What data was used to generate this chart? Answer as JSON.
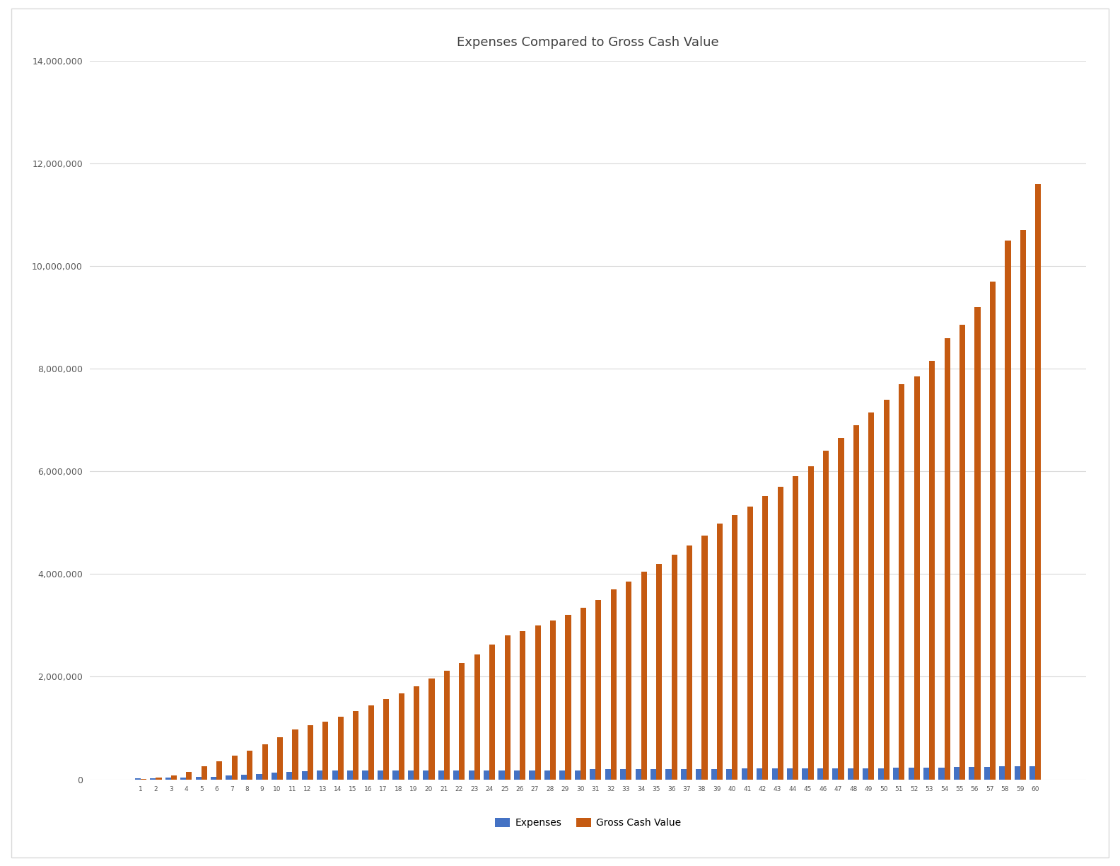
{
  "title": "Expenses Compared to Gross Cash Value",
  "years": [
    1,
    2,
    3,
    4,
    5,
    6,
    7,
    8,
    9,
    10,
    11,
    12,
    13,
    14,
    15,
    16,
    17,
    18,
    19,
    20,
    21,
    22,
    23,
    24,
    25,
    26,
    27,
    28,
    29,
    30,
    31,
    32,
    33,
    34,
    35,
    36,
    37,
    38,
    39,
    40,
    41,
    42,
    43,
    44,
    45,
    46,
    47,
    48,
    49,
    50,
    51,
    52,
    53,
    54,
    55,
    56,
    57,
    58,
    59,
    60
  ],
  "expenses": [
    18000,
    18000,
    36000,
    36000,
    54000,
    54000,
    72000,
    90000,
    108000,
    126000,
    144000,
    162000,
    180000,
    180000,
    180000,
    180000,
    180000,
    180000,
    180000,
    180000,
    180000,
    180000,
    180000,
    180000,
    180000,
    180000,
    180000,
    180000,
    180000,
    180000,
    200000,
    200000,
    200000,
    200000,
    200000,
    200000,
    200000,
    200000,
    200000,
    200000,
    210000,
    210000,
    210000,
    210000,
    210000,
    220000,
    220000,
    220000,
    220000,
    220000,
    230000,
    230000,
    230000,
    230000,
    240000,
    240000,
    240000,
    250000,
    250000,
    260000
  ],
  "gross_cash_value": [
    8000,
    30000,
    80000,
    150000,
    250000,
    350000,
    460000,
    560000,
    680000,
    820000,
    970000,
    1050000,
    1130000,
    1220000,
    1330000,
    1440000,
    1560000,
    1680000,
    1810000,
    1970000,
    2120000,
    2270000,
    2440000,
    2620000,
    2800000,
    2890000,
    3000000,
    3100000,
    3200000,
    3350000,
    3500000,
    3700000,
    3850000,
    4050000,
    4200000,
    4380000,
    4560000,
    4750000,
    4980000,
    5150000,
    5320000,
    5520000,
    5700000,
    5900000,
    6100000,
    6400000,
    6650000,
    6900000,
    7150000,
    7400000,
    7700000,
    7850000,
    8150000,
    8600000,
    8850000,
    9200000,
    9700000,
    10500000,
    10700000,
    11600000
  ],
  "expenses_color": "#4472C4",
  "gcv_color": "#C55A11",
  "background_color": "#FFFFFF",
  "chart_area_color": "#FFFFFF",
  "ylim": [
    0,
    14000000
  ],
  "yticks": [
    0,
    2000000,
    4000000,
    6000000,
    8000000,
    10000000,
    12000000,
    14000000
  ],
  "grid_color": "#D9D9D9",
  "legend_labels": [
    "Expenses",
    "Gross Cash Value"
  ],
  "outer_border_color": "#D9D9D9"
}
